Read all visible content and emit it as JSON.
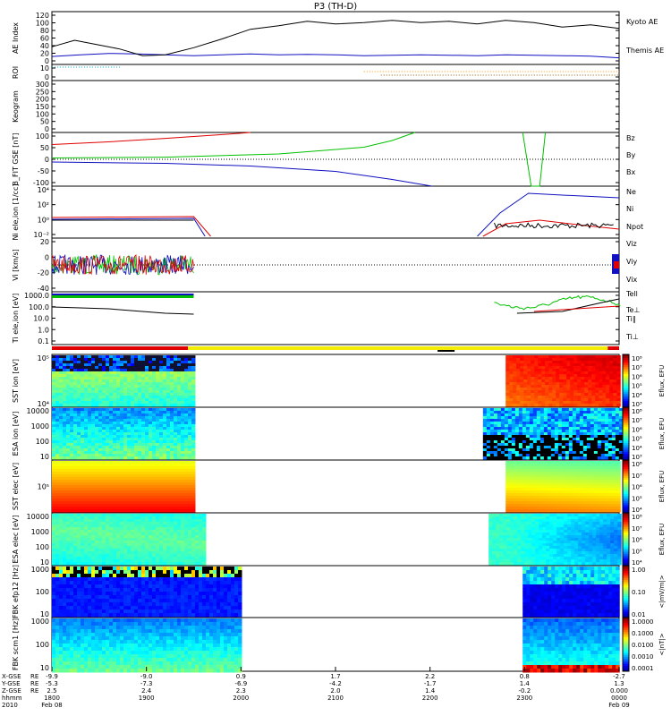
{
  "title": "P3 (TH-D)",
  "colors": {
    "black": "#000000",
    "red": "#e00000",
    "green": "#00c000",
    "blue": "#1010c0",
    "cyan": "#00c0e0",
    "yellow": "#f2ec00",
    "orange": "#ff9000",
    "brown": "#8a5a00"
  },
  "chart_data": [
    {
      "id": "ae",
      "type": "line",
      "ylabel": "AE Index",
      "yticks": [
        "120",
        "100",
        "80",
        "60",
        "40",
        "20",
        "0"
      ],
      "ylim": [
        0,
        120
      ],
      "series": [
        {
          "name": "Kyoto AE",
          "color": "#1010c0",
          "x": [
            0,
            0.05,
            0.1,
            0.15,
            0.2,
            0.25,
            0.3,
            0.35,
            0.4,
            0.45,
            0.5,
            0.55,
            0.6,
            0.65,
            0.7,
            0.75,
            0.8,
            0.85,
            0.9,
            0.95,
            1
          ],
          "y": [
            18,
            22,
            25,
            24,
            22,
            20,
            22,
            24,
            22,
            23,
            22,
            20,
            21,
            22,
            21,
            20,
            22,
            21,
            20,
            19,
            15
          ]
        },
        {
          "name": "Themis AE",
          "color": "#000000",
          "x": [
            0,
            0.04,
            0.08,
            0.12,
            0.16,
            0.2,
            0.25,
            0.3,
            0.35,
            0.4,
            0.45,
            0.5,
            0.55,
            0.6,
            0.65,
            0.7,
            0.75,
            0.8,
            0.85,
            0.9,
            0.95,
            1
          ],
          "y": [
            40,
            55,
            45,
            35,
            20,
            22,
            38,
            58,
            80,
            88,
            98,
            92,
            95,
            100,
            95,
            98,
            92,
            100,
            95,
            85,
            90,
            82
          ]
        }
      ]
    },
    {
      "id": "roi",
      "type": "other",
      "ylabel": "ROI",
      "yticks": [
        "10",
        "0"
      ]
    },
    {
      "id": "keogram",
      "type": "other",
      "ylabel": "Keogram",
      "yticks": [
        "300",
        "250",
        "200",
        "150",
        "100",
        "50",
        "0"
      ]
    },
    {
      "id": "bfield",
      "type": "line",
      "ylabel": "B_FIT GSE [nT]",
      "yticks": [
        "100",
        "50",
        "0",
        "-50",
        "-100"
      ],
      "ylim": [
        -100,
        100
      ],
      "series": [
        {
          "name": "Bz",
          "color": "#e00000",
          "x": [
            0,
            0.1,
            0.2,
            0.3,
            0.35
          ],
          "y": [
            55,
            65,
            78,
            92,
            100
          ]
        },
        {
          "name": "By",
          "color": "#00c000",
          "x": [
            0,
            0.2,
            0.4,
            0.55,
            0.6,
            0.64
          ],
          "y": [
            5,
            8,
            20,
            45,
            70,
            100
          ]
        },
        {
          "name": "Bx",
          "color": "#1010c0",
          "x": [
            0,
            0.2,
            0.35,
            0.5,
            0.6,
            0.67
          ],
          "y": [
            -10,
            -15,
            -25,
            -45,
            -75,
            -100
          ]
        }
      ]
    },
    {
      "id": "density",
      "type": "line",
      "ylabel": "Ni ele,ion [1/cc]",
      "yticks": [
        "10⁴",
        "10²",
        "10⁰",
        "10⁻²"
      ],
      "ylim": [
        -3,
        4.5
      ],
      "series": [
        {
          "name": "Ne",
          "color": "#e00000"
        },
        {
          "name": "Ni",
          "color": "#000000"
        },
        {
          "name": "Npot",
          "color": "#1010c0"
        }
      ]
    },
    {
      "id": "velocity",
      "type": "line",
      "ylabel": "Vi [km/s]",
      "yticks": [
        "20",
        "0",
        "-20",
        "-40"
      ],
      "ylim": [
        -50,
        30
      ],
      "series": [
        {
          "name": "Viz",
          "color": "#e00000"
        },
        {
          "name": "Viy",
          "color": "#00c000"
        },
        {
          "name": "Vix",
          "color": "#1010c0"
        }
      ]
    },
    {
      "id": "temperature",
      "type": "line",
      "ylabel": "Ti ele,ion [eV]",
      "yticks": [
        "1000.0",
        "100.0",
        "10.0",
        "1.0",
        "0.1"
      ],
      "ylim": [
        -1,
        3.5
      ],
      "series": [
        {
          "name": "Tell",
          "color": "#000000"
        },
        {
          "name": "Te⊥",
          "color": "#e00000"
        },
        {
          "name": "Ti∥",
          "color": "#00c000"
        },
        {
          "name": "Ti⊥",
          "color": "#1010c0"
        }
      ]
    },
    {
      "id": "sst1",
      "type": "heatmap",
      "ylabel": "SST ion [eV]",
      "yticks": [
        "10⁵",
        "10⁴"
      ],
      "colorbar_ticks": [
        "10⁸",
        "10⁷",
        "10⁶",
        "10⁵",
        "10⁴",
        "10³"
      ],
      "colorbar_label": "Eflux, EFU"
    },
    {
      "id": "esa1",
      "type": "heatmap",
      "ylabel": "ESA ion [eV]",
      "yticks": [
        "10000",
        "1000",
        "100",
        "10"
      ],
      "colorbar_ticks": [
        "10⁸",
        "10⁷",
        "10⁶",
        "10⁵",
        "10⁴",
        "10³"
      ],
      "colorbar_label": "Eflux, EFU"
    },
    {
      "id": "sst2",
      "type": "heatmap",
      "ylabel": "SST elec [eV]",
      "yticks": [
        "10⁵"
      ],
      "colorbar_ticks": [
        "10⁸",
        "10⁷",
        "10⁶",
        "10⁵",
        "10⁴"
      ],
      "colorbar_label": "Eflux, EFU"
    },
    {
      "id": "esa2",
      "type": "heatmap",
      "ylabel": "ESA elec [eV]",
      "yticks": [
        "10000",
        "1000",
        "100",
        "10"
      ],
      "colorbar_ticks": [
        "10⁸",
        "10⁷",
        "10⁶",
        "10⁵",
        "10⁴"
      ],
      "colorbar_label": "Eflux, EFU"
    },
    {
      "id": "fbk1",
      "type": "heatmap",
      "ylabel": "FBK efp12 [Hz]",
      "yticks": [
        "1000",
        "100",
        "10"
      ],
      "colorbar_ticks": [
        "1.00",
        "0.10",
        "0.01"
      ],
      "colorbar_label": "<|mV/m|>"
    },
    {
      "id": "fbk2",
      "type": "heatmap",
      "ylabel": "FBK scm1 [Hz]",
      "yticks": [
        "1000",
        "100",
        "10"
      ],
      "colorbar_ticks": [
        "1.0000",
        "0.1000",
        "0.0100",
        "0.0010",
        "0.0001"
      ],
      "colorbar_label": "<|nT|>"
    }
  ],
  "xaxis": {
    "row_labels": [
      "X-GSE",
      "Y-GSE",
      "Z-GSE",
      "hhmm",
      "2010"
    ],
    "row_label_units": [
      "RE",
      "RE",
      "RE",
      "",
      ""
    ],
    "columns": [
      {
        "v": [
          "-9.9",
          "-5.3",
          "2.5",
          "1800",
          "Feb 08"
        ]
      },
      {
        "v": [
          "-9.0",
          "-7.3",
          "2.4",
          "1900",
          ""
        ]
      },
      {
        "v": [
          "0.9",
          "-6.9",
          "2.3",
          "2000",
          ""
        ]
      },
      {
        "v": [
          "1.7",
          "-4.2",
          "2.0",
          "2100",
          ""
        ]
      },
      {
        "v": [
          "2.2",
          "-1.7",
          "1.4",
          "2200",
          ""
        ]
      },
      {
        "v": [
          "0.8",
          "1.4",
          "-0.2",
          "2300",
          ""
        ]
      },
      {
        "v": [
          "-2.7",
          "1.3",
          "0.000",
          "0000",
          "Feb 09"
        ]
      }
    ]
  }
}
